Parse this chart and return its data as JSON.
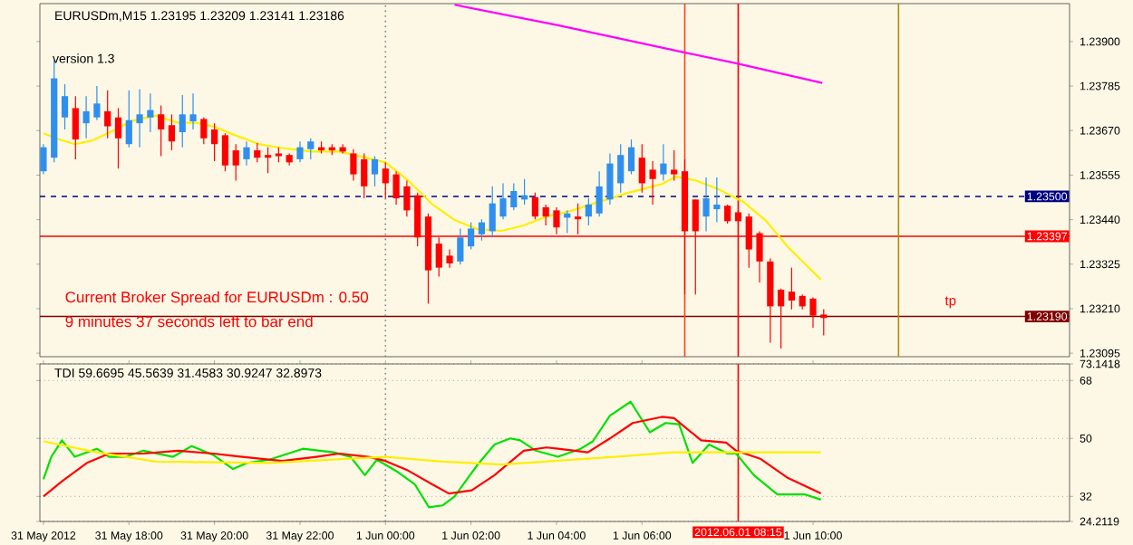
{
  "chart_data": [
    {
      "type": "candlestick",
      "title": "EURUSDm,M15  1.23195 1.23209 1.23141 1.23186",
      "tick_labels": "y",
      "xlim": [
        "2012-05-31T15:55",
        "2012-06-01T16:00"
      ],
      "ylim": [
        1.23086,
        1.23998
      ],
      "yticks": [
        {
          "value": 1.23095,
          "label": "1.23095"
        },
        {
          "value": 1.2321,
          "label": "1.23210"
        },
        {
          "value": 1.23325,
          "label": "1.23325"
        },
        {
          "value": 1.2344,
          "label": "1.23440"
        },
        {
          "value": 1.23555,
          "label": "1.23555"
        },
        {
          "value": 1.2367,
          "label": "1.23670"
        },
        {
          "value": 1.23785,
          "label": "1.23785"
        },
        {
          "value": 1.239,
          "label": "1.23900"
        }
      ],
      "x": [
        "2012-05-31T16:00",
        "2012-05-31T16:15",
        "2012-05-31T16:30",
        "2012-05-31T16:45",
        "2012-05-31T17:00",
        "2012-05-31T17:15",
        "2012-05-31T17:30",
        "2012-05-31T17:45",
        "2012-05-31T18:00",
        "2012-05-31T18:15",
        "2012-05-31T18:30",
        "2012-05-31T18:45",
        "2012-05-31T19:00",
        "2012-05-31T19:15",
        "2012-05-31T19:30",
        "2012-05-31T19:45",
        "2012-05-31T20:00",
        "2012-05-31T20:15",
        "2012-05-31T20:30",
        "2012-05-31T20:45",
        "2012-05-31T21:00",
        "2012-05-31T21:15",
        "2012-05-31T21:30",
        "2012-05-31T21:45",
        "2012-05-31T22:00",
        "2012-05-31T22:15",
        "2012-05-31T22:30",
        "2012-05-31T22:45",
        "2012-05-31T23:00",
        "2012-05-31T23:15",
        "2012-05-31T23:30",
        "2012-05-31T23:45",
        "2012-06-01T00:00",
        "2012-06-01T00:15",
        "2012-06-01T00:30",
        "2012-06-01T00:45",
        "2012-06-01T01:00",
        "2012-06-01T01:15",
        "2012-06-01T01:30",
        "2012-06-01T01:45",
        "2012-06-01T02:00",
        "2012-06-01T02:15",
        "2012-06-01T02:30",
        "2012-06-01T02:45",
        "2012-06-01T03:00",
        "2012-06-01T03:15",
        "2012-06-01T03:30",
        "2012-06-01T03:45",
        "2012-06-01T04:00",
        "2012-06-01T04:15",
        "2012-06-01T04:30",
        "2012-06-01T04:45",
        "2012-06-01T05:00",
        "2012-06-01T05:15",
        "2012-06-01T05:30",
        "2012-06-01T05:45",
        "2012-06-01T06:00",
        "2012-06-01T06:15",
        "2012-06-01T06:30",
        "2012-06-01T06:45",
        "2012-06-01T07:00",
        "2012-06-01T07:15",
        "2012-06-01T07:30",
        "2012-06-01T07:45",
        "2012-06-01T08:00",
        "2012-06-01T08:15",
        "2012-06-01T08:30",
        "2012-06-01T08:45",
        "2012-06-01T09:00",
        "2012-06-01T09:15",
        "2012-06-01T09:30",
        "2012-06-01T09:45",
        "2012-06-01T10:00",
        "2012-06-01T10:15"
      ],
      "ohlc": [
        [
          1.23565,
          1.23635,
          1.23557,
          1.23627
        ],
        [
          1.236,
          1.23852,
          1.23588,
          1.23805
        ],
        [
          1.23704,
          1.2379,
          1.23673,
          1.23759
        ],
        [
          1.23728,
          1.23759,
          1.23596,
          1.23647
        ],
        [
          1.23689,
          1.23759,
          1.2365,
          1.2372
        ],
        [
          1.23704,
          1.23785,
          1.23697,
          1.2374
        ],
        [
          1.2372,
          1.23774,
          1.2365,
          1.23681
        ],
        [
          1.23704,
          1.23728,
          1.23572,
          1.2365
        ],
        [
          1.23635,
          1.23774,
          1.23627,
          1.23697
        ],
        [
          1.23689,
          1.23777,
          1.23627,
          1.23712
        ],
        [
          1.23704,
          1.23766,
          1.23666,
          1.23723
        ],
        [
          1.23712,
          1.23735,
          1.23604,
          1.23673
        ],
        [
          1.23684,
          1.23712,
          1.23619,
          1.23642
        ],
        [
          1.23666,
          1.23762,
          1.23627,
          1.23712
        ],
        [
          1.23694,
          1.23766,
          1.23673,
          1.23712
        ],
        [
          1.237,
          1.23704,
          1.23635,
          1.2365
        ],
        [
          1.23673,
          1.23689,
          1.23591,
          1.23635
        ],
        [
          1.23658,
          1.23663,
          1.23565,
          1.2358
        ],
        [
          1.23619,
          1.23635,
          1.23541,
          1.2358
        ],
        [
          1.23596,
          1.23642,
          1.2358,
          1.23627
        ],
        [
          1.23619,
          1.23638,
          1.23588,
          1.236
        ],
        [
          1.23607,
          1.23627,
          1.2356,
          1.236
        ],
        [
          1.23611,
          1.23627,
          1.23588,
          1.23604
        ],
        [
          1.23607,
          1.23611,
          1.2358,
          1.23588
        ],
        [
          1.23596,
          1.23642,
          1.23588,
          1.23627
        ],
        [
          1.23622,
          1.2365,
          1.23596,
          1.23642
        ],
        [
          1.23627,
          1.23642,
          1.23611,
          1.23619
        ],
        [
          1.23627,
          1.23635,
          1.23607,
          1.23619
        ],
        [
          1.23627,
          1.23635,
          1.23611,
          1.23616
        ],
        [
          1.23611,
          1.23622,
          1.23541,
          1.23557
        ],
        [
          1.23596,
          1.23611,
          1.23495,
          1.23526
        ],
        [
          1.23557,
          1.23604,
          1.23526,
          1.23596
        ],
        [
          1.23572,
          1.23588,
          1.23495,
          1.23534
        ],
        [
          1.23557,
          1.23565,
          1.23479,
          1.23495
        ],
        [
          1.23526,
          1.23541,
          1.23448,
          1.23464
        ],
        [
          1.23503,
          1.2351,
          1.23371,
          1.23394
        ],
        [
          1.23448,
          1.23456,
          1.23223,
          1.23309
        ],
        [
          1.23378,
          1.23394,
          1.23293,
          1.23316
        ],
        [
          1.23347,
          1.23363,
          1.23316,
          1.23327
        ],
        [
          1.23332,
          1.23417,
          1.23324,
          1.23394
        ],
        [
          1.23371,
          1.23433,
          1.23363,
          1.23417
        ],
        [
          1.23402,
          1.23441,
          1.23386,
          1.23433
        ],
        [
          1.2341,
          1.23526,
          1.23394,
          1.23482
        ],
        [
          1.23448,
          1.23534,
          1.23441,
          1.23495
        ],
        [
          1.23472,
          1.23534,
          1.23464,
          1.23514
        ],
        [
          1.23492,
          1.23545,
          1.23479,
          1.23503
        ],
        [
          1.23498,
          1.2351,
          1.23441,
          1.23448
        ],
        [
          1.23472,
          1.23479,
          1.23425,
          1.23448
        ],
        [
          1.23464,
          1.23472,
          1.23402,
          1.2342
        ],
        [
          1.23445,
          1.23464,
          1.23405,
          1.23456
        ],
        [
          1.23448,
          1.23482,
          1.23402,
          1.23441
        ],
        [
          1.23448,
          1.23495,
          1.23425,
          1.23479
        ],
        [
          1.23456,
          1.23565,
          1.23448,
          1.23526
        ],
        [
          1.23492,
          1.23611,
          1.23479,
          1.23585
        ],
        [
          1.23534,
          1.23635,
          1.2351,
          1.23607
        ],
        [
          1.23565,
          1.23647,
          1.23557,
          1.23627
        ],
        [
          1.236,
          1.23635,
          1.2351,
          1.23534
        ],
        [
          1.23569,
          1.23591,
          1.23479,
          1.23545
        ],
        [
          1.23557,
          1.23635,
          1.23541,
          1.23585
        ],
        [
          1.23569,
          1.23619,
          1.23541,
          1.23557
        ],
        [
          1.23565,
          1.23596,
          1.23247,
          1.2341
        ],
        [
          1.23492,
          1.23492,
          1.23247,
          1.2341
        ],
        [
          1.23448,
          1.23549,
          1.2341,
          1.23495
        ],
        [
          1.23467,
          1.23549,
          1.23433,
          1.23479
        ],
        [
          1.23476,
          1.23479,
          1.2343,
          1.23436
        ],
        [
          1.23459,
          1.23464,
          1.2343,
          1.23436
        ],
        [
          1.23448,
          1.23456,
          1.23316,
          1.23363
        ],
        [
          1.23405,
          1.2341,
          1.23278,
          1.23332
        ],
        [
          1.23332,
          1.2334,
          1.23122,
          1.23216
        ],
        [
          1.23259,
          1.23262,
          1.23107,
          1.23216
        ],
        [
          1.23254,
          1.23316,
          1.23208,
          1.23231
        ],
        [
          1.23243,
          1.23247,
          1.23208,
          1.23216
        ],
        [
          1.23236,
          1.23239,
          1.23161,
          1.23192
        ],
        [
          1.23195,
          1.23209,
          1.23141,
          1.23186
        ]
      ],
      "colors": [
        "#2f8fef",
        "#2f8fef",
        "#2f8fef",
        "#ff0000",
        "#2f8fef",
        "#2f8fef",
        "#ff0000",
        "#ff0000",
        "#2f8fef",
        "#2f8fef",
        "#2f8fef",
        "#ff0000",
        "#ff0000",
        "#2f8fef",
        "#2f8fef",
        "#ff0000",
        "#ff0000",
        "#ff0000",
        "#ff0000",
        "#2f8fef",
        "#ff0000",
        "#ff0000",
        "#ff0000",
        "#ff0000",
        "#2f8fef",
        "#2f8fef",
        "#ff0000",
        "#ff0000",
        "#ff0000",
        "#ff0000",
        "#ff0000",
        "#2f8fef",
        "#ff0000",
        "#ff0000",
        "#ff0000",
        "#ff0000",
        "#ff0000",
        "#ff0000",
        "#ff0000",
        "#2f8fef",
        "#2f8fef",
        "#2f8fef",
        "#2f8fef",
        "#2f8fef",
        "#2f8fef",
        "#2f8fef",
        "#ff0000",
        "#ff0000",
        "#ff0000",
        "#2f8fef",
        "#ff0000",
        "#2f8fef",
        "#2f8fef",
        "#2f8fef",
        "#2f8fef",
        "#2f8fef",
        "#ff0000",
        "#ff0000",
        "#2f8fef",
        "#ff0000",
        "#ff0000",
        "#ff0000",
        "#2f8fef",
        "#2f8fef",
        "#ff0000",
        "#ff0000",
        "#ff0000",
        "#ff0000",
        "#ff0000",
        "#ff0000",
        "#ff0000",
        "#ff0000",
        "#ff0000",
        "#ff0000"
      ],
      "series": [
        {
          "type": "line",
          "color": "#ffee00",
          "x": [
            "2012-05-31T16:00",
            "2012-05-31T16:19",
            "2012-05-31T16:44",
            "2012-05-31T17:08",
            "2012-05-31T17:40",
            "2012-05-31T18:04",
            "2012-05-31T18:38",
            "2012-05-31T19:09",
            "2012-05-31T19:34",
            "2012-05-31T19:58",
            "2012-05-31T20:29",
            "2012-05-31T21:03",
            "2012-05-31T21:35",
            "2012-05-31T22:16",
            "2012-05-31T22:55",
            "2012-05-31T23:28",
            "2012-06-01T00:00",
            "2012-06-01T00:32",
            "2012-06-01T01:05",
            "2012-06-01T01:37",
            "2012-06-01T02:08",
            "2012-06-01T02:43",
            "2012-06-01T03:14",
            "2012-06-01T03:46",
            "2012-06-01T04:19",
            "2012-06-01T04:51",
            "2012-06-01T05:40",
            "2012-06-01T06:28",
            "2012-06-01T06:47",
            "2012-06-01T07:16",
            "2012-06-01T07:48",
            "2012-06-01T08:22",
            "2012-06-01T08:53",
            "2012-06-01T09:25",
            "2012-06-01T10:11"
          ],
          "values": [
            1.23663,
            1.23649,
            1.23635,
            1.23644,
            1.23672,
            1.23695,
            1.23709,
            1.2369,
            1.2369,
            1.23681,
            1.23658,
            1.23635,
            1.23625,
            1.23616,
            1.23616,
            1.23602,
            1.23588,
            1.23541,
            1.23481,
            1.23439,
            1.23416,
            1.23411,
            1.23425,
            1.23448,
            1.23462,
            1.23481,
            1.23509,
            1.23532,
            1.23551,
            1.23541,
            1.23518,
            1.23486,
            1.23439,
            1.23369,
            1.23285
          ]
        },
        {
          "type": "line",
          "color": "#ff00ff",
          "x": [
            "2012-06-01T01:37",
            "2012-06-01T04:02",
            "2012-06-01T06:59",
            "2012-06-01T08:12",
            "2012-06-01T10:13"
          ],
          "values": [
            1.23995,
            1.23942,
            1.23872,
            1.23844,
            1.23793
          ]
        }
      ],
      "ref_lines": [
        {
          "axis": "y",
          "value": 1.235,
          "label": "1.23500",
          "color": "#000080",
          "line_style": "dashed"
        },
        {
          "axis": "y",
          "value": 1.23397,
          "label": "1.23397",
          "color": "#ff0000",
          "line_style": "solid"
        },
        {
          "axis": "y",
          "value": 1.2319,
          "label": "1.23190",
          "color": "#800000",
          "line_style": "solid"
        },
        {
          "axis": "x",
          "value": "2012-06-01T00:00",
          "color": "#808080",
          "line_style": "dotted"
        },
        {
          "axis": "x",
          "value": "2012-06-01T07:00",
          "color": "#ff4020",
          "line_style": "solid"
        },
        {
          "axis": "x",
          "value": "2012-06-01T08:15",
          "color": "#ff0000",
          "line_style": "solid"
        },
        {
          "axis": "x",
          "value": "2012-06-01T12:00",
          "color": "#b8860b",
          "line_style": "solid"
        }
      ],
      "annotations": [
        "version 1.3",
        "Current Broker Spread for EURUSDm : 0.50",
        "9 minutes 37 seconds left to bar end",
        {
          "text": "tp",
          "x": "2012-06-01T13:13",
          "y": 1.23206
        }
      ]
    },
    {
      "type": "line",
      "title": "TDI 59.6695 45.5639 31.4583 30.9247 32.8973",
      "grid": "y",
      "xlim": [
        "2012-05-31T15:55",
        "2012-06-01T16:00"
      ],
      "ylim": [
        24.2119,
        73.1418
      ],
      "xticks": [
        {
          "value": "2012-05-31T16:00",
          "label": "31 May 2012"
        },
        {
          "value": "2012-05-31T18:00",
          "label": "31 May 18:00"
        },
        {
          "value": "2012-05-31T20:00",
          "label": "31 May 20:00"
        },
        {
          "value": "2012-05-31T22:00",
          "label": "31 May 22:00"
        },
        {
          "value": "2012-06-01T00:00",
          "label": "1 Jun 00:00"
        },
        {
          "value": "2012-06-01T02:00",
          "label": "1 Jun 02:00"
        },
        {
          "value": "2012-06-01T04:00",
          "label": "1 Jun 04:00"
        },
        {
          "value": "2012-06-01T06:00",
          "label": "1 Jun 06:00"
        },
        {
          "value": "2012-06-01T10:00",
          "label": "1 Jun 10:00"
        }
      ],
      "yticks": [
        24.2119,
        32,
        50,
        68,
        73.1418
      ],
      "series": [
        {
          "color": "#00e000",
          "x": [
            "2012-05-31T16:00",
            "2012-05-31T16:11",
            "2012-05-31T16:26",
            "2012-05-31T16:44",
            "2012-05-31T17:15",
            "2012-05-31T17:32",
            "2012-05-31T17:56",
            "2012-05-31T18:20",
            "2012-05-31T19:02",
            "2012-05-31T19:28",
            "2012-05-31T19:58",
            "2012-05-31T20:26",
            "2012-05-31T20:46",
            "2012-05-31T21:17",
            "2012-05-31T22:04",
            "2012-05-31T22:47",
            "2012-05-31T23:11",
            "2012-05-31T23:31",
            "2012-05-31T23:48",
            "2012-06-01T00:17",
            "2012-06-01T00:41",
            "2012-06-01T01:01",
            "2012-06-01T01:20",
            "2012-06-01T01:37",
            "2012-06-01T02:08",
            "2012-06-01T02:33",
            "2012-06-01T02:55",
            "2012-06-01T03:09",
            "2012-06-01T03:31",
            "2012-06-01T04:02",
            "2012-06-01T04:34",
            "2012-06-01T04:51",
            "2012-06-01T05:15",
            "2012-06-01T05:44",
            "2012-06-01T06:11",
            "2012-06-01T06:33",
            "2012-06-01T06:52",
            "2012-06-01T07:11",
            "2012-06-01T07:34",
            "2012-06-01T08:00",
            "2012-06-01T08:12",
            "2012-06-01T08:37",
            "2012-06-01T09:10",
            "2012-06-01T09:49",
            "2012-06-01T10:11"
          ],
          "values": [
            37.3,
            44.3,
            49.4,
            44.3,
            46.8,
            44.3,
            44.3,
            46.2,
            44.3,
            47.6,
            44.9,
            40.5,
            42.4,
            43.4,
            46.8,
            45.7,
            44.3,
            38.6,
            43.4,
            39.6,
            35.8,
            28.6,
            29.2,
            32.0,
            41.5,
            48.1,
            50.0,
            49.4,
            46.2,
            44.3,
            46.8,
            49.1,
            57.1,
            61.4,
            51.9,
            54.8,
            54.4,
            42.4,
            48.1,
            45.3,
            45.3,
            38.6,
            32.6,
            32.6,
            31.0
          ]
        },
        {
          "color": "#ff0000",
          "x": [
            "2012-05-31T16:00",
            "2012-05-31T16:26",
            "2012-05-31T17:01",
            "2012-05-31T17:32",
            "2012-05-31T18:20",
            "2012-05-31T19:09",
            "2012-05-31T19:58",
            "2012-05-31T20:39",
            "2012-05-31T21:35",
            "2012-05-31T22:23",
            "2012-05-31T22:55",
            "2012-05-31T23:36",
            "2012-06-01T00:00",
            "2012-06-01T00:32",
            "2012-06-01T01:05",
            "2012-06-01T01:29",
            "2012-06-01T02:01",
            "2012-06-01T02:33",
            "2012-06-01T03:14",
            "2012-06-01T03:46",
            "2012-06-01T04:02",
            "2012-06-01T04:44",
            "2012-06-01T05:15",
            "2012-06-01T05:47",
            "2012-06-01T06:28",
            "2012-06-01T06:45",
            "2012-06-01T07:23",
            "2012-06-01T07:58",
            "2012-06-01T08:12",
            "2012-06-01T08:46",
            "2012-06-01T09:25",
            "2012-06-01T10:11"
          ],
          "values": [
            32.0,
            36.7,
            42.4,
            45.3,
            45.3,
            46.2,
            45.3,
            44.3,
            43.0,
            44.3,
            45.3,
            44.3,
            43.0,
            40.0,
            35.8,
            32.9,
            33.9,
            38.6,
            46.2,
            47.2,
            46.8,
            45.7,
            50.0,
            54.8,
            56.7,
            56.3,
            49.4,
            48.7,
            46.2,
            43.7,
            37.7,
            32.9
          ]
        },
        {
          "color": "#ffee00",
          "x": [
            "2012-05-31T16:00",
            "2012-05-31T17:15",
            "2012-05-31T18:38",
            "2012-05-31T21:17",
            "2012-06-01T00:00",
            "2012-06-01T01:20",
            "2012-06-01T02:43",
            "2012-06-01T05:22",
            "2012-06-01T06:45",
            "2012-06-01T08:05",
            "2012-06-01T10:11"
          ],
          "values": [
            49.1,
            45.7,
            42.8,
            42.4,
            44.3,
            42.8,
            41.9,
            44.3,
            45.7,
            45.7,
            45.7
          ]
        }
      ],
      "ref_lines": [
        {
          "axis": "x",
          "value": "2012-06-01T00:00",
          "color": "#808080",
          "line_style": "dotted"
        },
        {
          "axis": "x",
          "value": "2012-06-01T08:15",
          "label": "2012.06.01 08:15",
          "color": "#ff0000",
          "line_style": "solid"
        }
      ]
    }
  ]
}
